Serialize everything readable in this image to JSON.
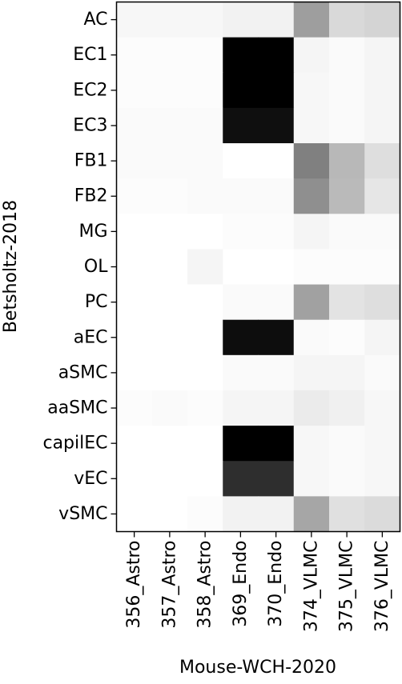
{
  "chart_data": {
    "type": "heatmap",
    "title": "",
    "xlabel": "Mouse-WCH-2020",
    "ylabel": "Betsholtz-2018",
    "colormap": "greys",
    "vmin": 0,
    "vmax": 1,
    "grid": false,
    "colorbar": false,
    "x_categories": [
      "356_Astro",
      "357_Astro",
      "358_Astro",
      "369_Endo",
      "370_Endo",
      "374_VLMC",
      "375_VLMC",
      "376_VLMC"
    ],
    "y_categories": [
      "AC",
      "EC1",
      "EC2",
      "EC3",
      "FB1",
      "FB2",
      "MG",
      "OL",
      "PC",
      "aEC",
      "aSMC",
      "aaSMC",
      "capilEC",
      "vEC",
      "vSMC"
    ],
    "values": [
      [
        0.03,
        0.03,
        0.03,
        0.05,
        0.05,
        0.38,
        0.15,
        0.17
      ],
      [
        0.01,
        0.01,
        0.01,
        1.0,
        1.0,
        0.04,
        0.02,
        0.04
      ],
      [
        0.01,
        0.01,
        0.01,
        1.0,
        1.0,
        0.03,
        0.02,
        0.04
      ],
      [
        0.02,
        0.02,
        0.02,
        0.94,
        0.94,
        0.03,
        0.02,
        0.04
      ],
      [
        0.02,
        0.02,
        0.02,
        0.0,
        0.0,
        0.5,
        0.28,
        0.13
      ],
      [
        0.01,
        0.01,
        0.02,
        0.02,
        0.02,
        0.44,
        0.27,
        0.1
      ],
      [
        0.0,
        0.0,
        0.0,
        0.01,
        0.01,
        0.04,
        0.02,
        0.02
      ],
      [
        0.0,
        0.0,
        0.04,
        0.0,
        0.0,
        0.01,
        0.01,
        0.01
      ],
      [
        0.0,
        0.0,
        0.0,
        0.02,
        0.02,
        0.37,
        0.11,
        0.13
      ],
      [
        0.0,
        0.0,
        0.0,
        0.95,
        0.95,
        0.02,
        0.01,
        0.04
      ],
      [
        0.0,
        0.0,
        0.0,
        0.02,
        0.02,
        0.04,
        0.04,
        0.02
      ],
      [
        0.01,
        0.02,
        0.01,
        0.04,
        0.04,
        0.08,
        0.06,
        0.03
      ],
      [
        0.0,
        0.0,
        0.0,
        1.0,
        1.0,
        0.03,
        0.02,
        0.03
      ],
      [
        0.0,
        0.0,
        0.0,
        0.82,
        0.82,
        0.03,
        0.02,
        0.03
      ],
      [
        0.0,
        0.0,
        0.01,
        0.05,
        0.05,
        0.35,
        0.12,
        0.14
      ]
    ]
  }
}
